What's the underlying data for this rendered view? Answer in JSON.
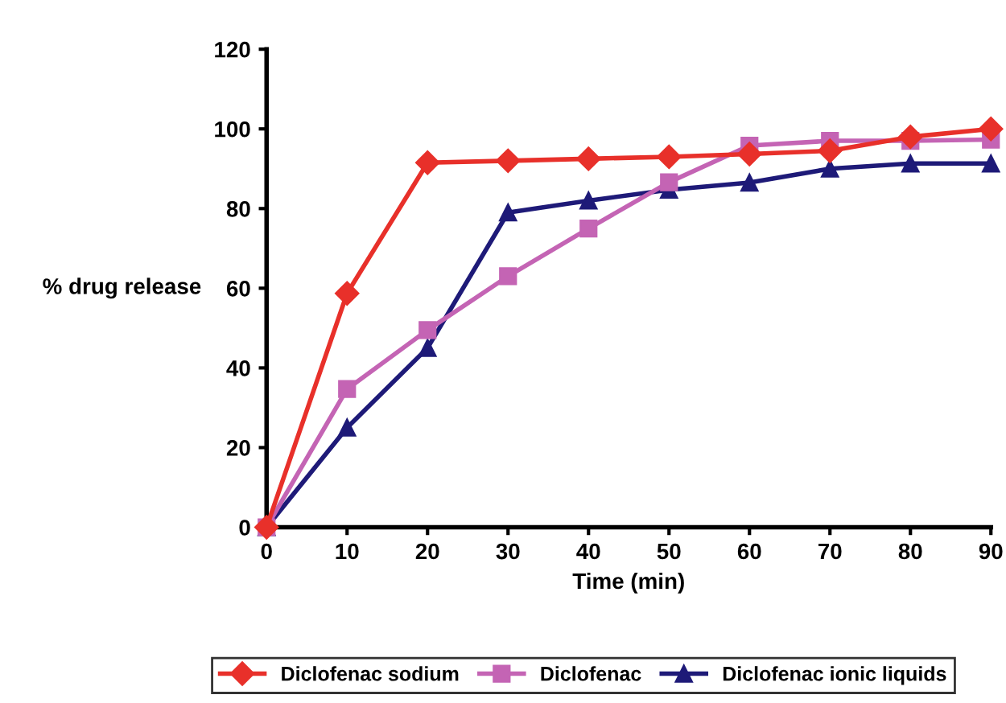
{
  "chart_data": {
    "type": "line",
    "xlabel": "Time (min)",
    "ylabel": "% drug release",
    "x": [
      0,
      10,
      20,
      30,
      40,
      50,
      60,
      70,
      80,
      90
    ],
    "series": [
      {
        "name": "Diclofenac sodium",
        "color": "#e8302a",
        "marker": "diamond",
        "values": [
          0,
          58.7,
          91.5,
          92,
          92.5,
          93,
          93.7,
          94.5,
          98,
          100
        ]
      },
      {
        "name": "Diclofenac",
        "color": "#c464b4",
        "marker": "square",
        "values": [
          0,
          34.7,
          49.5,
          63,
          75,
          86.6,
          95.8,
          97,
          97,
          97.3
        ]
      },
      {
        "name": "Diclofenac ionic liquids",
        "color": "#1e1a78",
        "marker": "triangle",
        "values": [
          0,
          25,
          45,
          79,
          82,
          84.7,
          86.5,
          90,
          91.3,
          91.3
        ]
      }
    ],
    "xlim": [
      0,
      90
    ],
    "xticks": [
      0,
      10,
      20,
      30,
      40,
      50,
      60,
      70,
      80,
      90
    ],
    "ylim": [
      0,
      120
    ],
    "yticks": [
      0,
      20,
      40,
      60,
      80,
      100,
      120
    ],
    "grid": false,
    "legend": "bottom",
    "line_style": "solid"
  }
}
